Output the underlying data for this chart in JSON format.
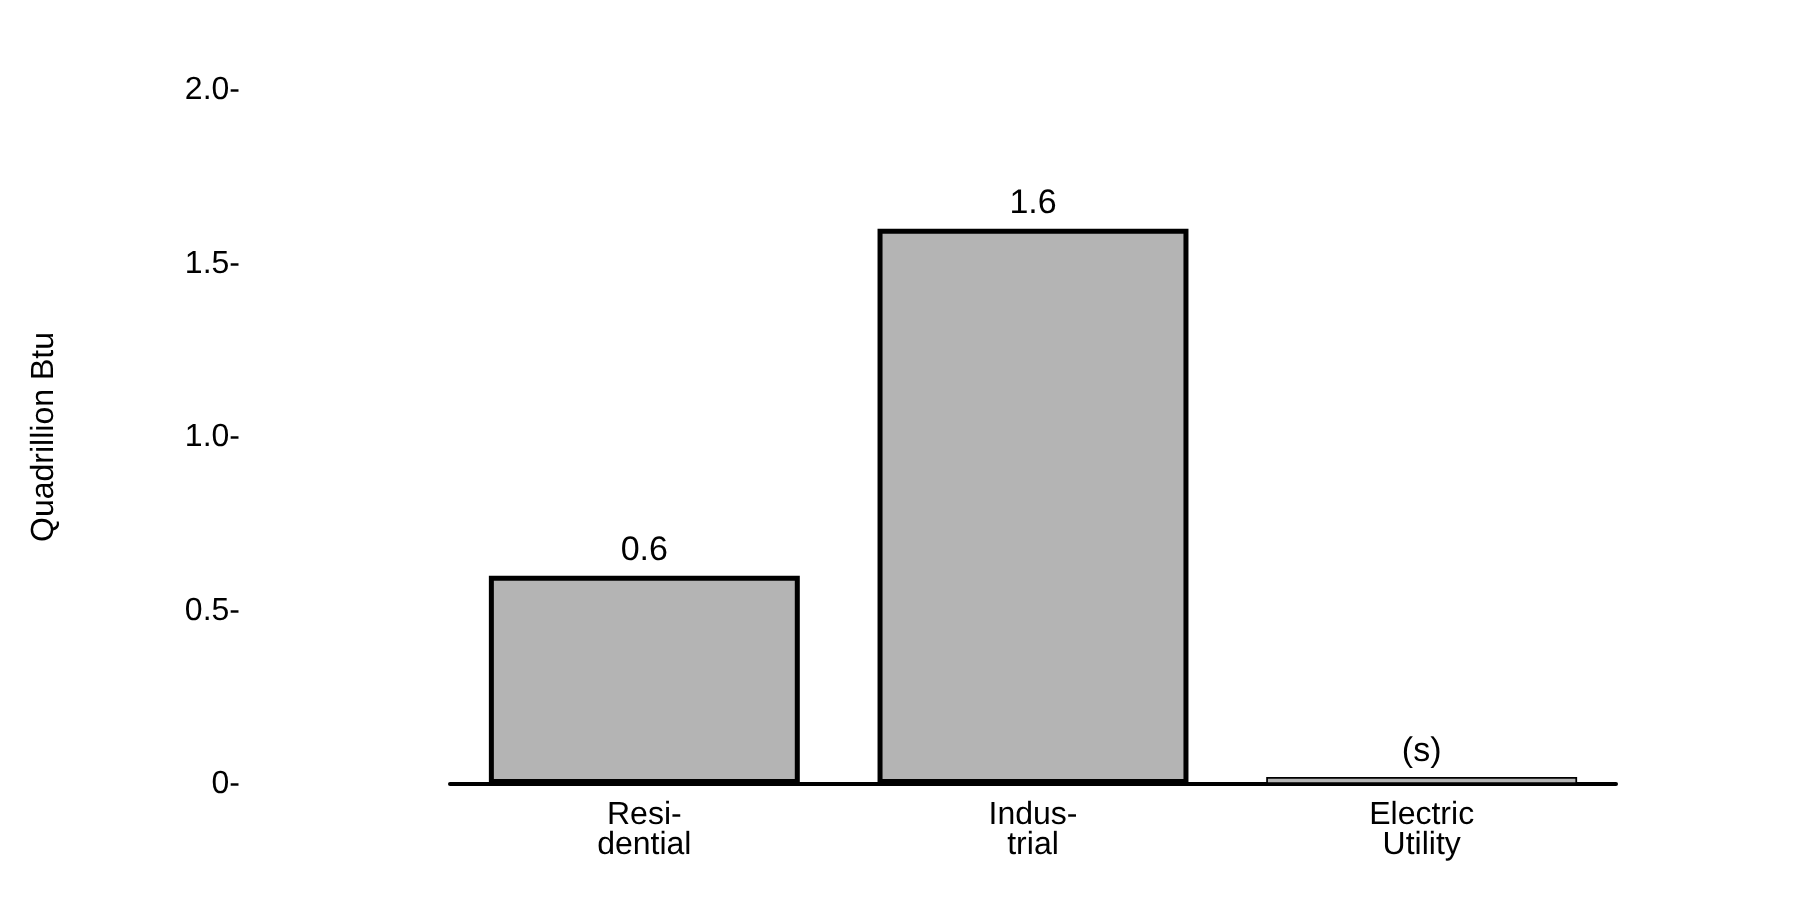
{
  "chart_data": {
    "type": "bar",
    "ylabel": "Quadrillion Btu",
    "categories": [
      "Resi-\ndential",
      "Indus-\ntrial",
      "Electric\nUtility"
    ],
    "values": [
      0.6,
      1.6,
      0.02
    ],
    "value_labels": [
      "0.6",
      "1.6",
      "(s)"
    ],
    "color": "#b4b4b4",
    "ylim": [
      0,
      2
    ],
    "yticks": [
      {
        "value": 0,
        "label": "0-"
      },
      {
        "value": 0.5,
        "label": "0.5-"
      },
      {
        "value": 1,
        "label": "1.0-"
      },
      {
        "value": 1.5,
        "label": "1.5-"
      },
      {
        "value": 2,
        "label": "2.0-"
      }
    ],
    "grid": false
  }
}
